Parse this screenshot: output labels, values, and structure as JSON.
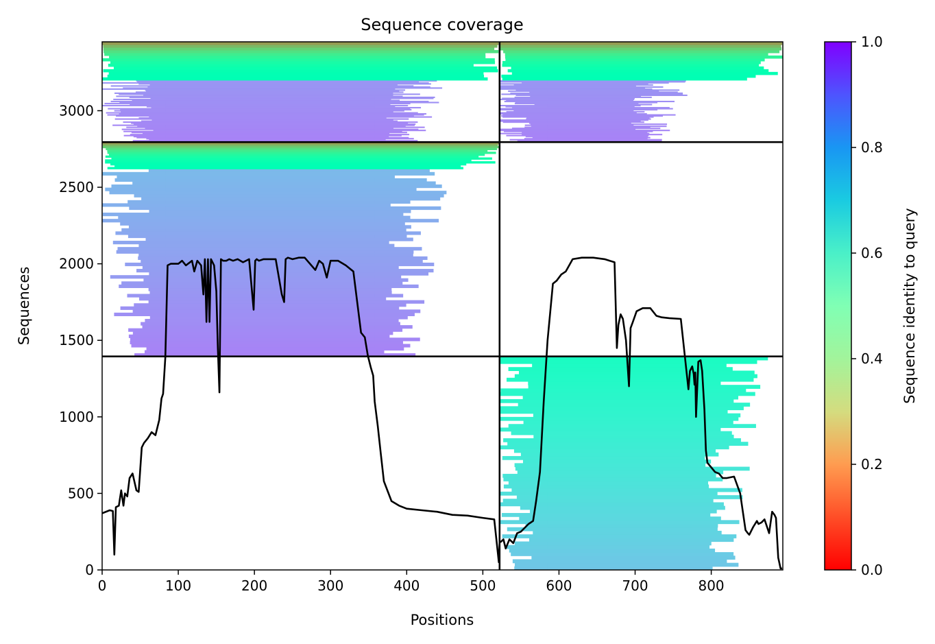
{
  "chart_data": {
    "type": "heatmap",
    "title": "Sequence coverage",
    "xlabel": "Positions",
    "ylabel": "Sequences",
    "xlim": [
      0,
      894
    ],
    "ylim": [
      0,
      3450
    ],
    "x_ticks": [
      0,
      100,
      200,
      300,
      400,
      500,
      600,
      700,
      800
    ],
    "y_ticks": [
      0,
      500,
      1000,
      1500,
      2000,
      2500,
      3000
    ],
    "colorbar": {
      "label": "Sequence identity to query",
      "range": [
        0.0,
        1.0
      ],
      "ticks": [
        "0.0",
        "0.2",
        "0.4",
        "0.6",
        "0.8",
        "1.0"
      ],
      "colormap": "rainbow"
    },
    "chain_boundary_x": 522,
    "row_boundaries_y": [
      1395,
      2795
    ],
    "blocks": [
      {
        "name": "chain A, group 1",
        "x_range": [
          0,
          522
        ],
        "y_range": [
          0,
          1395
        ],
        "coverage": "empty"
      },
      {
        "name": "chain B, group 1",
        "x_range": [
          522,
          894
        ],
        "y_range": [
          0,
          1395
        ],
        "core_x": [
          585,
          775
        ],
        "identity_bottom": 0.28,
        "identity_top": 0.45
      },
      {
        "name": "chain A, group 2",
        "x_range": [
          0,
          522
        ],
        "y_range": [
          1395,
          2795
        ],
        "core_x": [
          83,
          358
        ],
        "identity_bottom": 0.17,
        "identity_top": 0.26,
        "high_identity_top": [
          2620,
          2795
        ]
      },
      {
        "name": "chain B, group 2",
        "x_range": [
          522,
          894
        ],
        "y_range": [
          1395,
          2795
        ],
        "coverage": "empty"
      },
      {
        "name": "chain A, group 3",
        "x_range": [
          0,
          522
        ],
        "y_range": [
          2795,
          3450
        ],
        "core_x": [
          83,
          358
        ],
        "identity_bottom": 0.17,
        "identity_top": 0.2,
        "high_identity_top": [
          3200,
          3450
        ]
      },
      {
        "name": "chain B, group 3",
        "x_range": [
          522,
          894
        ],
        "y_range": [
          2795,
          3450
        ],
        "core_x": [
          585,
          680
        ],
        "identity_bottom": 0.17,
        "identity_top": 0.2,
        "high_identity_top": [
          3200,
          3450
        ]
      }
    ],
    "coverage_line": {
      "x": [
        0,
        10,
        14,
        16,
        18,
        22,
        25,
        28,
        30,
        33,
        36,
        40,
        45,
        48,
        52,
        55,
        60,
        65,
        70,
        75,
        78,
        80,
        83,
        86,
        90,
        95,
        100,
        105,
        110,
        118,
        121,
        125,
        130,
        133,
        135,
        137,
        139,
        141,
        143,
        147,
        150,
        152,
        154,
        156,
        159,
        163,
        167,
        172,
        178,
        185,
        193,
        199,
        201,
        203,
        206,
        212,
        220,
        228,
        236,
        239,
        241,
        244,
        250,
        258,
        266,
        280,
        285,
        290,
        295,
        300,
        306,
        310,
        320,
        330,
        340,
        345,
        349,
        353,
        356,
        358,
        362,
        366,
        370,
        380,
        390,
        400,
        420,
        440,
        460,
        480,
        500,
        515,
        521,
        522,
        524,
        527,
        530,
        535,
        540,
        545,
        550,
        560,
        566,
        570,
        575,
        580,
        585,
        592,
        597,
        603,
        609,
        618,
        630,
        645,
        660,
        673,
        676,
        678,
        681,
        684,
        688,
        692,
        694,
        697,
        702,
        710,
        720,
        728,
        735,
        745,
        760,
        770,
        772,
        775,
        777,
        778,
        779,
        780,
        783,
        786,
        788,
        791,
        793,
        795,
        800,
        805,
        810,
        815,
        820,
        830,
        838,
        845,
        848,
        850,
        855,
        860,
        862,
        866,
        870,
        876,
        880,
        883,
        885,
        888,
        891,
        893
      ],
      "y": [
        370,
        390,
        385,
        100,
        410,
        420,
        520,
        420,
        500,
        480,
        600,
        630,
        520,
        510,
        800,
        830,
        860,
        900,
        880,
        980,
        1120,
        1150,
        1390,
        1990,
        2000,
        2000,
        2000,
        2020,
        1990,
        2020,
        1950,
        2020,
        1990,
        1800,
        2030,
        1620,
        2030,
        1620,
        2030,
        1990,
        1820,
        1450,
        1160,
        2030,
        2020,
        2020,
        2030,
        2020,
        2030,
        2010,
        2030,
        1700,
        2020,
        2030,
        2020,
        2030,
        2030,
        2030,
        1800,
        1750,
        2030,
        2040,
        2030,
        2040,
        2040,
        1960,
        2020,
        2000,
        1910,
        2020,
        2020,
        2020,
        1990,
        1950,
        1550,
        1520,
        1400,
        1320,
        1270,
        1100,
        940,
        760,
        580,
        450,
        420,
        400,
        390,
        380,
        360,
        355,
        340,
        330,
        50,
        180,
        185,
        200,
        140,
        200,
        175,
        240,
        250,
        300,
        320,
        450,
        640,
        1100,
        1500,
        1870,
        1890,
        1930,
        1950,
        2030,
        2040,
        2040,
        2030,
        2010,
        1450,
        1600,
        1670,
        1640,
        1500,
        1200,
        1580,
        1620,
        1690,
        1710,
        1710,
        1660,
        1650,
        1645,
        1640,
        1180,
        1300,
        1330,
        1280,
        1210,
        1290,
        1000,
        1360,
        1370,
        1300,
        1050,
        780,
        700,
        670,
        640,
        630,
        600,
        600,
        610,
        500,
        260,
        240,
        230,
        280,
        320,
        300,
        310,
        330,
        240,
        380,
        360,
        340,
        80,
        10,
        10
      ]
    }
  }
}
